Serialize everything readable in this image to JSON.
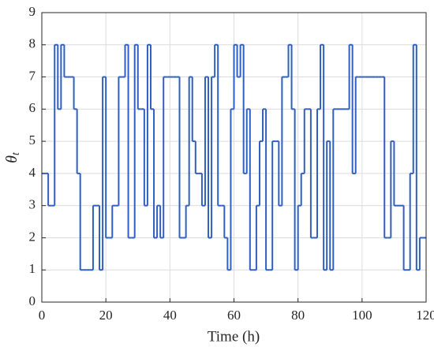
{
  "chart_data": {
    "type": "step",
    "xlabel": "Time (h)",
    "ylabel": {
      "symbol": "θ",
      "subscript": "t"
    },
    "x": [
      0,
      1,
      2,
      3,
      4,
      5,
      6,
      7,
      8,
      9,
      10,
      11,
      12,
      13,
      14,
      15,
      16,
      17,
      18,
      19,
      20,
      21,
      22,
      23,
      24,
      25,
      26,
      27,
      28,
      29,
      30,
      31,
      32,
      33,
      34,
      35,
      36,
      37,
      38,
      39,
      40,
      41,
      42,
      43,
      44,
      45,
      46,
      47,
      48,
      49,
      50,
      51,
      52,
      53,
      54,
      55,
      56,
      57,
      58,
      59,
      60,
      61,
      62,
      63,
      64,
      65,
      66,
      67,
      68,
      69,
      70,
      71,
      72,
      73,
      74,
      75,
      76,
      77,
      78,
      79,
      80,
      81,
      82,
      83,
      84,
      85,
      86,
      87,
      88,
      89,
      90,
      91,
      92,
      93,
      94,
      95,
      96,
      97,
      98,
      99,
      100,
      101,
      102,
      103,
      104,
      105,
      106,
      107,
      108,
      109,
      110,
      111,
      112,
      113,
      114,
      115,
      116,
      117,
      118,
      119
    ],
    "series": [
      {
        "color": "#2f5fc0",
        "values": [
          4,
          4,
          3,
          3,
          8,
          6,
          8,
          7,
          7,
          7,
          6,
          4,
          1,
          1,
          1,
          1,
          3,
          3,
          1,
          7,
          2,
          2,
          3,
          3,
          7,
          7,
          8,
          2,
          2,
          8,
          6,
          6,
          3,
          8,
          6,
          2,
          3,
          2,
          7,
          7,
          7,
          7,
          7,
          2,
          2,
          3,
          7,
          5,
          4,
          4,
          3,
          7,
          2,
          7,
          8,
          3,
          3,
          2,
          1,
          6,
          8,
          7,
          8,
          4,
          6,
          1,
          1,
          3,
          5,
          6,
          1,
          1,
          5,
          5,
          3,
          7,
          7,
          8,
          6,
          1,
          3,
          4,
          6,
          6,
          2,
          2,
          6,
          8,
          1,
          5,
          1,
          6,
          6,
          6,
          6,
          6,
          8,
          4,
          7,
          7,
          7,
          7,
          7,
          7,
          7,
          7,
          7,
          2,
          2,
          5,
          3,
          3,
          3,
          1,
          1,
          4,
          8,
          1,
          2,
          2
        ]
      }
    ],
    "xlim": [
      0,
      120
    ],
    "ylim": [
      0,
      9
    ],
    "xticks": [
      0,
      20,
      40,
      60,
      80,
      100,
      120
    ],
    "yticks": [
      0,
      1,
      2,
      3,
      4,
      5,
      6,
      7,
      8,
      9
    ],
    "grid": true
  }
}
